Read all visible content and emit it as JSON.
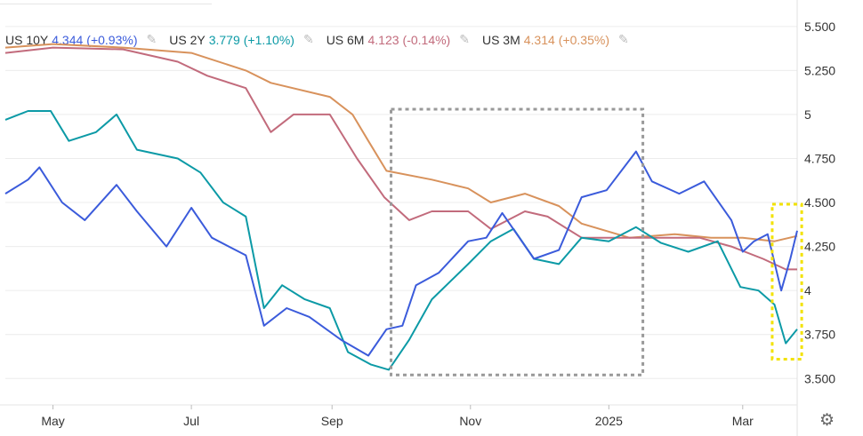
{
  "legend": [
    {
      "name": "US 10Y",
      "value": "4.344",
      "change": "(+0.93%)",
      "color": "#3b5bdb"
    },
    {
      "name": "US 2Y",
      "value": "3.779",
      "change": "(+1.10%)",
      "color": "#0c9aa6"
    },
    {
      "name": "US 6M",
      "value": "4.123",
      "change": "(-0.14%)",
      "color": "#c26b7c"
    },
    {
      "name": "US 3M",
      "value": "4.314",
      "change": "(+0.35%)",
      "color": "#d8925c"
    }
  ],
  "icons": {
    "edit": "pencil-icon",
    "settings": "gear-icon"
  },
  "chart_data": {
    "type": "line",
    "x_range": [
      "2024-04-10",
      "2025-03-25"
    ],
    "y_range": [
      3.35,
      5.6
    ],
    "yticks": [
      "5.500",
      "5.250",
      "5",
      "4.750",
      "4.500",
      "4.250",
      "4",
      "3.750",
      "3.500"
    ],
    "ytick_values": [
      5.5,
      5.25,
      5.0,
      4.75,
      4.5,
      4.25,
      4.0,
      3.75,
      3.5
    ],
    "xticks": [
      {
        "label": "May",
        "date": "2024-05-01"
      },
      {
        "label": "Jul",
        "date": "2024-07-01"
      },
      {
        "label": "Sep",
        "date": "2024-09-01"
      },
      {
        "label": "Nov",
        "date": "2024-11-01"
      },
      {
        "label": "2025",
        "date": "2025-01-01"
      },
      {
        "label": "Mar",
        "date": "2025-03-01"
      }
    ],
    "grid": "horizontal",
    "series": [
      {
        "name": "US 10Y",
        "color": "#3b5bdb",
        "points": [
          [
            "2024-04-10",
            4.55
          ],
          [
            "2024-04-20",
            4.63
          ],
          [
            "2024-04-25",
            4.7
          ],
          [
            "2024-05-05",
            4.5
          ],
          [
            "2024-05-15",
            4.4
          ],
          [
            "2024-05-29",
            4.6
          ],
          [
            "2024-06-07",
            4.45
          ],
          [
            "2024-06-20",
            4.25
          ],
          [
            "2024-07-01",
            4.47
          ],
          [
            "2024-07-10",
            4.3
          ],
          [
            "2024-07-25",
            4.2
          ],
          [
            "2024-08-02",
            3.8
          ],
          [
            "2024-08-12",
            3.9
          ],
          [
            "2024-08-22",
            3.85
          ],
          [
            "2024-09-05",
            3.72
          ],
          [
            "2024-09-17",
            3.63
          ],
          [
            "2024-09-25",
            3.78
          ],
          [
            "2024-10-02",
            3.8
          ],
          [
            "2024-10-08",
            4.03
          ],
          [
            "2024-10-18",
            4.1
          ],
          [
            "2024-10-31",
            4.28
          ],
          [
            "2024-11-08",
            4.3
          ],
          [
            "2024-11-15",
            4.44
          ],
          [
            "2024-11-29",
            4.18
          ],
          [
            "2024-12-10",
            4.23
          ],
          [
            "2024-12-20",
            4.53
          ],
          [
            "2024-12-31",
            4.57
          ],
          [
            "2025-01-13",
            4.79
          ],
          [
            "2025-01-20",
            4.62
          ],
          [
            "2025-02-01",
            4.55
          ],
          [
            "2025-02-12",
            4.62
          ],
          [
            "2025-02-24",
            4.4
          ],
          [
            "2025-03-01",
            4.22
          ],
          [
            "2025-03-06",
            4.28
          ],
          [
            "2025-03-12",
            4.32
          ],
          [
            "2025-03-18",
            4.0
          ],
          [
            "2025-03-22",
            4.18
          ],
          [
            "2025-03-25",
            4.34
          ]
        ]
      },
      {
        "name": "US 2Y",
        "color": "#0c9aa6",
        "points": [
          [
            "2024-04-10",
            4.97
          ],
          [
            "2024-04-20",
            5.02
          ],
          [
            "2024-04-30",
            5.02
          ],
          [
            "2024-05-08",
            4.85
          ],
          [
            "2024-05-20",
            4.9
          ],
          [
            "2024-05-29",
            5.0
          ],
          [
            "2024-06-07",
            4.8
          ],
          [
            "2024-06-25",
            4.75
          ],
          [
            "2024-07-05",
            4.67
          ],
          [
            "2024-07-15",
            4.5
          ],
          [
            "2024-07-25",
            4.42
          ],
          [
            "2024-08-02",
            3.9
          ],
          [
            "2024-08-10",
            4.03
          ],
          [
            "2024-08-20",
            3.95
          ],
          [
            "2024-08-31",
            3.9
          ],
          [
            "2024-09-08",
            3.65
          ],
          [
            "2024-09-18",
            3.58
          ],
          [
            "2024-09-26",
            3.55
          ],
          [
            "2024-10-05",
            3.72
          ],
          [
            "2024-10-15",
            3.95
          ],
          [
            "2024-10-31",
            4.15
          ],
          [
            "2024-11-10",
            4.28
          ],
          [
            "2024-11-20",
            4.35
          ],
          [
            "2024-11-29",
            4.18
          ],
          [
            "2024-12-10",
            4.15
          ],
          [
            "2024-12-20",
            4.3
          ],
          [
            "2025-01-01",
            4.28
          ],
          [
            "2025-01-13",
            4.36
          ],
          [
            "2025-01-24",
            4.27
          ],
          [
            "2025-02-05",
            4.22
          ],
          [
            "2025-02-18",
            4.28
          ],
          [
            "2025-02-28",
            4.02
          ],
          [
            "2025-03-08",
            4.0
          ],
          [
            "2025-03-15",
            3.92
          ],
          [
            "2025-03-20",
            3.7
          ],
          [
            "2025-03-25",
            3.78
          ]
        ]
      },
      {
        "name": "US 6M",
        "color": "#c26b7c",
        "points": [
          [
            "2024-04-10",
            5.35
          ],
          [
            "2024-05-01",
            5.38
          ],
          [
            "2024-06-01",
            5.37
          ],
          [
            "2024-06-25",
            5.3
          ],
          [
            "2024-07-08",
            5.22
          ],
          [
            "2024-07-25",
            5.15
          ],
          [
            "2024-08-05",
            4.9
          ],
          [
            "2024-08-15",
            5.0
          ],
          [
            "2024-08-31",
            5.0
          ],
          [
            "2024-09-12",
            4.75
          ],
          [
            "2024-09-24",
            4.53
          ],
          [
            "2024-10-05",
            4.4
          ],
          [
            "2024-10-15",
            4.45
          ],
          [
            "2024-10-31",
            4.45
          ],
          [
            "2024-11-10",
            4.35
          ],
          [
            "2024-11-25",
            4.45
          ],
          [
            "2024-12-05",
            4.42
          ],
          [
            "2024-12-20",
            4.3
          ],
          [
            "2025-01-10",
            4.3
          ],
          [
            "2025-01-25",
            4.3
          ],
          [
            "2025-02-10",
            4.3
          ],
          [
            "2025-02-24",
            4.25
          ],
          [
            "2025-03-10",
            4.18
          ],
          [
            "2025-03-20",
            4.12
          ],
          [
            "2025-03-25",
            4.12
          ]
        ]
      },
      {
        "name": "US 3M",
        "color": "#d8925c",
        "points": [
          [
            "2024-04-10",
            5.38
          ],
          [
            "2024-05-01",
            5.4
          ],
          [
            "2024-06-01",
            5.38
          ],
          [
            "2024-07-01",
            5.35
          ],
          [
            "2024-07-25",
            5.25
          ],
          [
            "2024-08-05",
            5.18
          ],
          [
            "2024-08-31",
            5.1
          ],
          [
            "2024-09-10",
            5.0
          ],
          [
            "2024-09-17",
            4.85
          ],
          [
            "2024-09-25",
            4.68
          ],
          [
            "2024-10-15",
            4.63
          ],
          [
            "2024-10-31",
            4.58
          ],
          [
            "2024-11-10",
            4.5
          ],
          [
            "2024-11-25",
            4.55
          ],
          [
            "2024-12-10",
            4.48
          ],
          [
            "2024-12-20",
            4.38
          ],
          [
            "2025-01-10",
            4.3
          ],
          [
            "2025-01-30",
            4.32
          ],
          [
            "2025-02-15",
            4.3
          ],
          [
            "2025-03-01",
            4.3
          ],
          [
            "2025-03-15",
            4.28
          ],
          [
            "2025-03-25",
            4.31
          ]
        ]
      }
    ],
    "annotations": [
      {
        "type": "dashed-box",
        "color": "#999999",
        "x0": "2024-09-27",
        "x1": "2025-01-16",
        "y0": 3.52,
        "y1": 5.03
      },
      {
        "type": "dashed-box",
        "color": "#f2e200",
        "x0": "2025-03-14",
        "x1": "2025-03-27",
        "y0": 3.61,
        "y1": 4.49
      }
    ]
  }
}
